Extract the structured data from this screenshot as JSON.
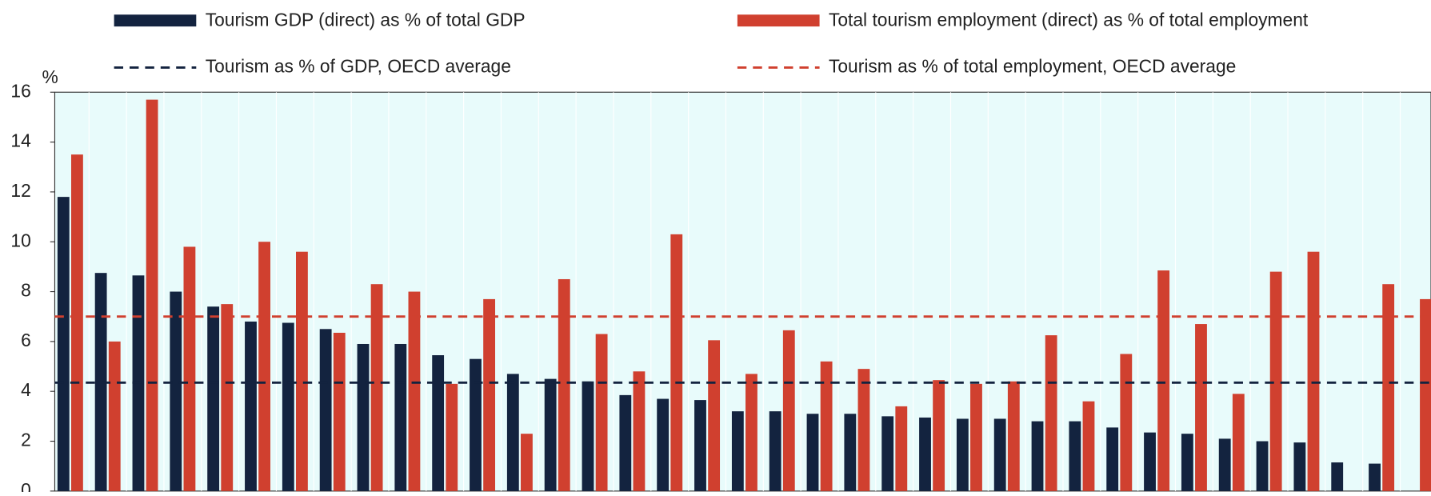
{
  "chart_data": {
    "type": "bar",
    "y_label": "%",
    "categories": [
      null,
      null,
      null,
      null,
      null,
      null,
      null,
      null,
      null,
      null,
      null,
      null,
      null,
      null,
      null,
      null,
      null,
      null,
      null,
      null,
      null,
      null,
      null,
      null,
      null,
      null,
      null,
      null,
      null,
      null,
      null,
      null,
      null,
      null,
      null,
      null,
      null
    ],
    "series": [
      {
        "name": "Tourism GDP (direct) as % of total GDP",
        "color": "#13233f",
        "values": [
          11.8,
          8.75,
          8.65,
          8.0,
          7.4,
          6.8,
          6.75,
          6.5,
          5.9,
          5.9,
          5.45,
          5.3,
          4.7,
          4.5,
          4.4,
          3.85,
          3.7,
          3.65,
          3.2,
          3.2,
          3.1,
          3.1,
          3.0,
          2.95,
          2.9,
          2.9,
          2.8,
          2.8,
          2.55,
          2.35,
          2.3,
          2.1,
          2.0,
          1.95,
          1.15,
          1.1,
          null
        ]
      },
      {
        "name": "Total tourism employment (direct) as % of total employment",
        "color": "#d0402f",
        "values": [
          13.5,
          6.0,
          15.7,
          9.8,
          7.5,
          10.0,
          9.6,
          6.35,
          8.3,
          8.0,
          4.3,
          7.7,
          2.3,
          8.5,
          6.3,
          4.8,
          10.3,
          6.05,
          4.7,
          6.45,
          5.2,
          4.9,
          3.4,
          4.45,
          4.3,
          4.4,
          6.25,
          3.6,
          5.5,
          8.85,
          6.7,
          3.9,
          8.8,
          9.6,
          null,
          8.3,
          7.7
        ]
      }
    ],
    "reference_lines": [
      {
        "name": "Tourism as % of GDP, OECD average",
        "value": 4.35,
        "color": "#13233f"
      },
      {
        "name": "Tourism as % of total employment, OECD average",
        "value": 7.0,
        "color": "#d0402f"
      }
    ],
    "ylim": [
      0,
      16
    ],
    "yticks": [
      0,
      2,
      4,
      6,
      8,
      10,
      12,
      14,
      16
    ],
    "background": "#e8fbfb"
  }
}
